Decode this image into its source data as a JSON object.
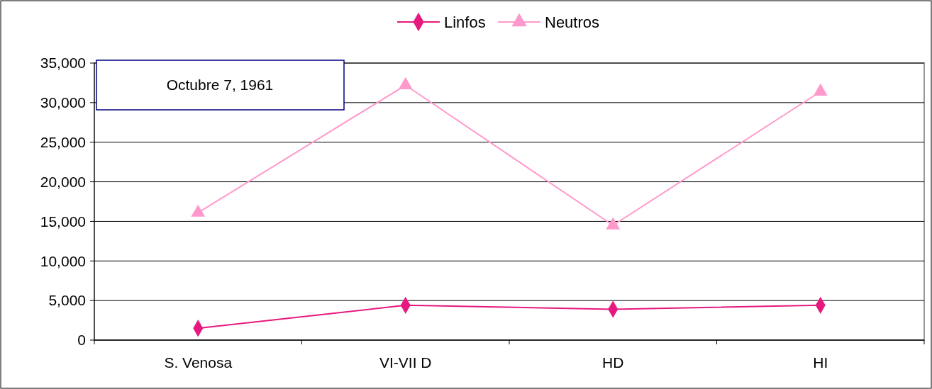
{
  "chart_data": {
    "type": "line",
    "categories": [
      "S. Venosa",
      "VI-VII D",
      "HD",
      "HI"
    ],
    "series": [
      {
        "name": "Linfos",
        "color": "#e6197f",
        "values": [
          1500,
          4400,
          3900,
          4400
        ],
        "marker": "diamond"
      },
      {
        "name": "Neutros",
        "color": "#ff99cc",
        "values": [
          16100,
          32200,
          14500,
          31400
        ],
        "marker": "triangle"
      }
    ],
    "ylim": [
      0,
      35000
    ],
    "yticks": [
      {
        "value": 0,
        "label": "0"
      },
      {
        "value": 5000,
        "label": "5,000"
      },
      {
        "value": 10000,
        "label": "10,000"
      },
      {
        "value": 15000,
        "label": "15,000"
      },
      {
        "value": 20000,
        "label": "20,000"
      },
      {
        "value": 25000,
        "label": "25,000"
      },
      {
        "value": 30000,
        "label": "30,000"
      },
      {
        "value": 35000,
        "label": "35,000"
      }
    ],
    "grid": "y",
    "legend": "top",
    "annotations": [
      "Octubre 7, 1961"
    ]
  }
}
